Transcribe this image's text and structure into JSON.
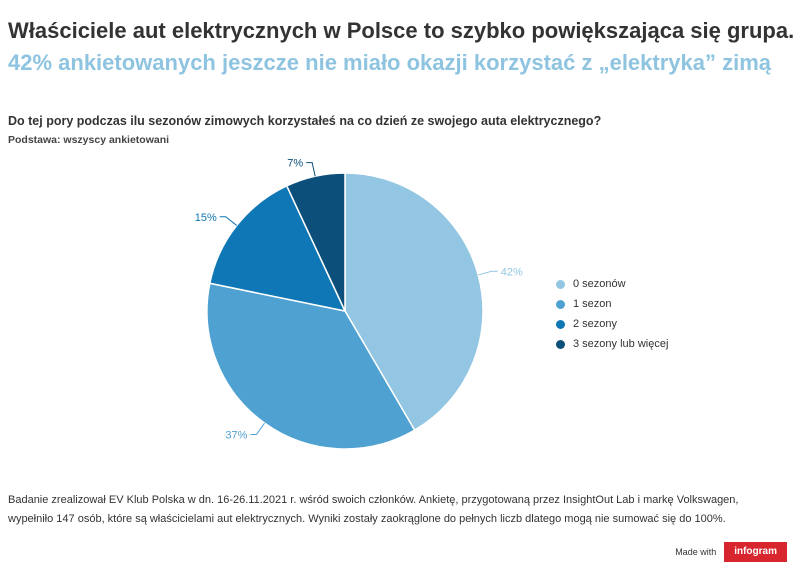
{
  "header": {
    "title": "Właściciele aut elektrycznych w Polsce to szybko powiększająca się grupa.",
    "subtitle": "42% ankietowanych jeszcze nie miało okazji korzystać z „elektryka” zimą"
  },
  "question": "Do tej pory podczas ilu sezonów zimowych korzystałeś na co dzień ze swojego auta elektrycznego?",
  "base_note": "Podstawa: wszyscy ankietowani",
  "chart_data": {
    "type": "pie",
    "categories": [
      "0 sezonów",
      "1 sezon",
      "2 sezony",
      "3 sezony lub więcej"
    ],
    "values": [
      42,
      37,
      15,
      7
    ],
    "value_labels": [
      "42%",
      "37%",
      "15%",
      "7%"
    ],
    "colors": [
      "#93c6e2",
      "#4fa1d2",
      "#0f77b6",
      "#0b4f7a"
    ],
    "legend_position": "right"
  },
  "footnote": "Badanie zrealizował EV Klub Polska w dn. 16-26.11.2021 r. wśród swoich członków. Ankietę, przygotowaną przez InsightOut Lab i markę Volkswagen, wypełniło 147 osób, które są właścicielami aut elektrycznych. Wyniki zostały zaokrąglone do pełnych liczb dlatego mogą nie sumować się do 100%.",
  "branding": {
    "made_with": "Made with",
    "logo_text": "infogram",
    "logo_color": "#d8262e"
  }
}
